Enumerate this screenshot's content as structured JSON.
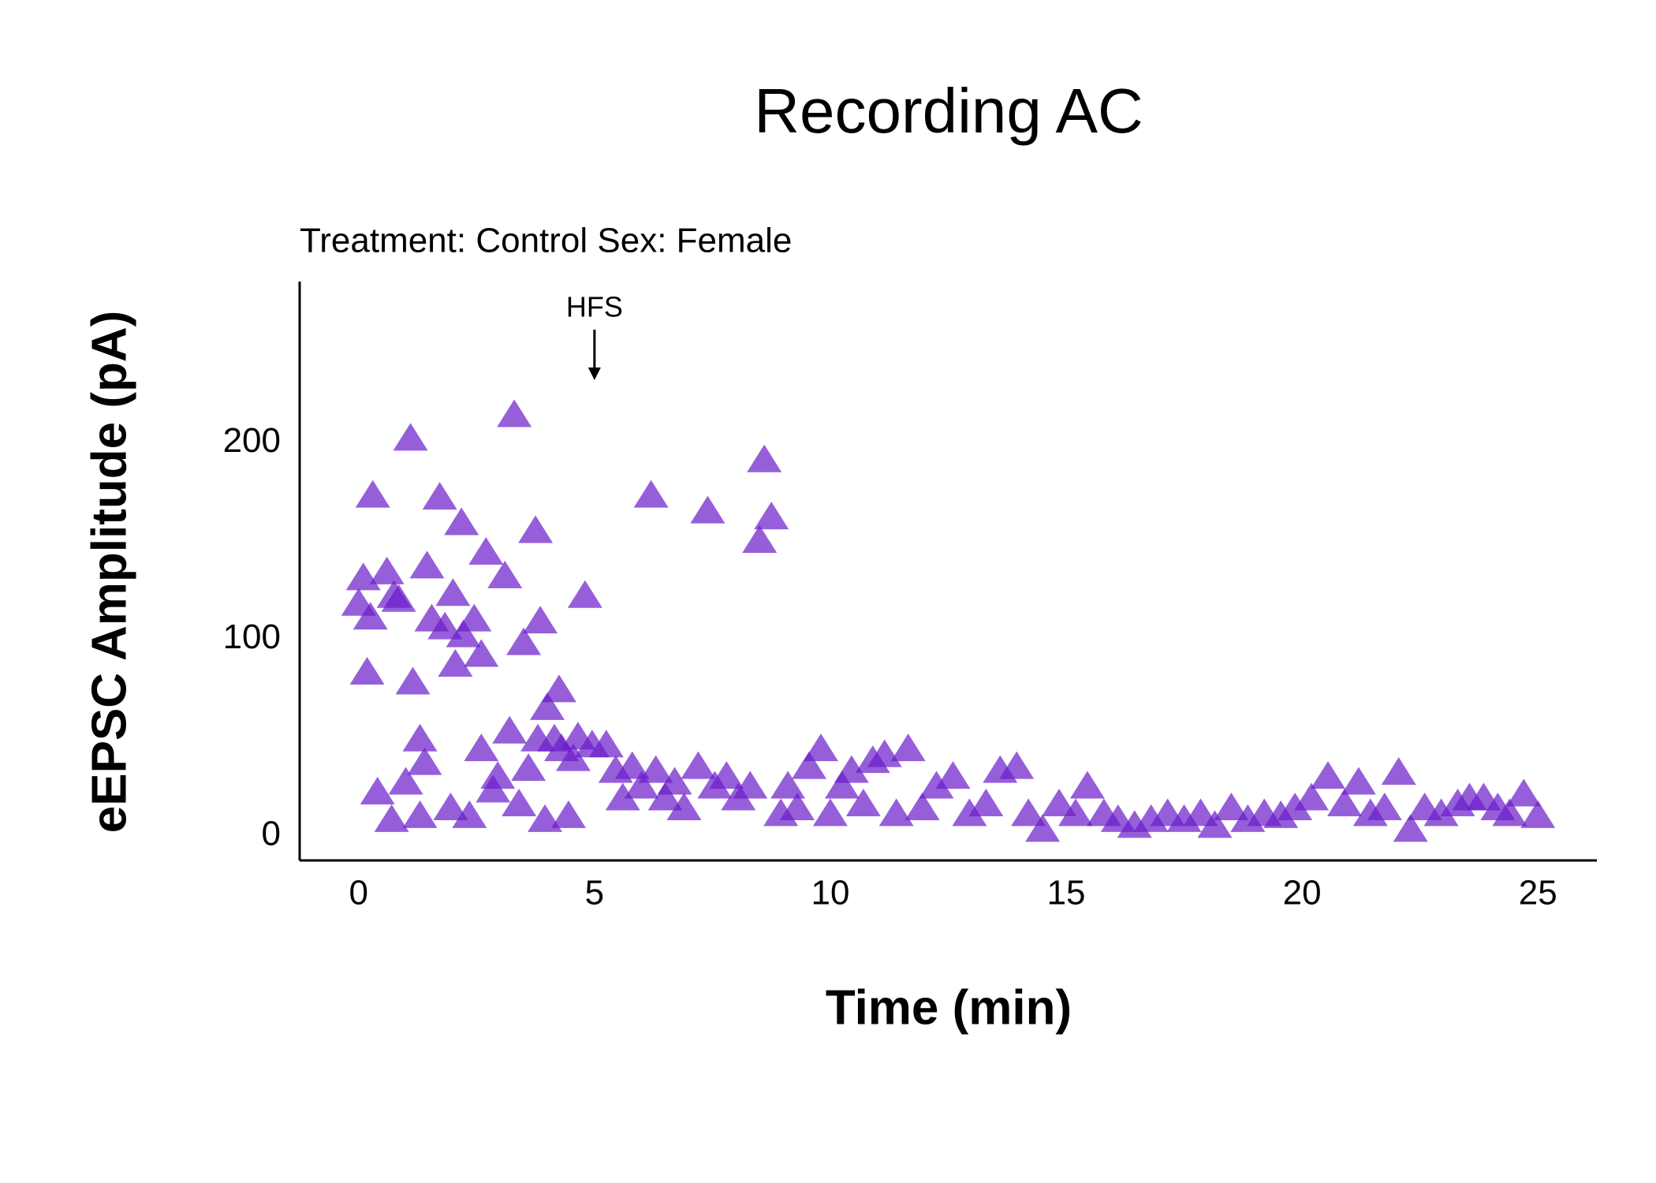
{
  "chart_data": {
    "type": "scatter",
    "title": "Recording AC",
    "subtitle": "Treatment: Control  Sex: Female",
    "x_label": "Time (min)",
    "y_label": "eEPSC Amplitude (pA)",
    "marker": "triangle",
    "color": "#6a1bc9",
    "alpha": 0.7,
    "annotation": {
      "text": "HFS",
      "x": 5
    },
    "x": [
      0.1,
      0,
      0.3,
      0.25,
      0.18,
      0.4,
      0.6,
      0.7,
      0.75,
      0.85,
      1.0,
      1.1,
      1.15,
      1.3,
      1.4,
      1.45,
      1.55,
      1.3,
      1.72,
      1.83,
      1.95,
      2.05,
      2.0,
      2.18,
      2.22,
      2.35,
      2.45,
      2.6,
      2.6,
      2.7,
      2.85,
      2.95,
      3.1,
      3.2,
      3.3,
      3.4,
      3.5,
      3.6,
      3.75,
      3.8,
      3.85,
      3.95,
      4.0,
      4.15,
      4.25,
      4.3,
      4.45,
      4.55,
      4.65,
      4.8,
      4.95,
      5.25,
      5.45,
      5.6,
      5.8,
      6.0,
      6.2,
      6.3,
      6.5,
      6.7,
      6.9,
      7.2,
      7.4,
      7.55,
      7.8,
      8.05,
      8.3,
      8.5,
      8.6,
      8.75,
      8.95,
      9.1,
      9.3,
      9.55,
      9.8,
      10.0,
      10.25,
      10.45,
      10.7,
      10.9,
      11.15,
      11.4,
      11.65,
      11.95,
      12.25,
      12.6,
      12.95,
      13.3,
      13.6,
      13.95,
      14.2,
      14.5,
      14.85,
      15.2,
      15.45,
      15.8,
      16.1,
      16.45,
      16.8,
      17.15,
      17.5,
      17.85,
      18.15,
      18.5,
      18.85,
      19.2,
      19.55,
      19.85,
      20.2,
      20.55,
      20.9,
      21.2,
      21.45,
      21.75,
      22.05,
      22.3,
      22.6,
      22.95,
      23.3,
      23.55,
      23.85,
      24.15,
      24.4,
      24.7,
      25
    ],
    "values": [
      131,
      118,
      173,
      111,
      83,
      22,
      134,
      8,
      122,
      120,
      27,
      202,
      78,
      49,
      37,
      137,
      110,
      10,
      172,
      106,
      14,
      87,
      123,
      159,
      102,
      10,
      110,
      44,
      92,
      144,
      23,
      30,
      132,
      53,
      214,
      16,
      98,
      34,
      155,
      49,
      109,
      8,
      65,
      49,
      74,
      44,
      10,
      39,
      50,
      122,
      46,
      46,
      33,
      19,
      35,
      25,
      173,
      33,
      19,
      27,
      14,
      35,
      165,
      25,
      30,
      19,
      25,
      150,
      191,
      162,
      11,
      25,
      14,
      35,
      44,
      11,
      25,
      33,
      16,
      38,
      41,
      11,
      44,
      14,
      25,
      30,
      11,
      16,
      33,
      35,
      11,
      3,
      16,
      11,
      25,
      11,
      8,
      5,
      8,
      11,
      8,
      11,
      5,
      14,
      8,
      11,
      10,
      14,
      19,
      30,
      16,
      27,
      11,
      14,
      32,
      3,
      14,
      11,
      16,
      19,
      19,
      14,
      11,
      21,
      10
    ],
    "xlim": [
      -1.25,
      26.25
    ],
    "ylim": [
      -12.5,
      282
    ],
    "xticks": [
      0,
      5,
      10,
      15,
      20,
      25
    ],
    "yticks": [
      0,
      100,
      200
    ]
  }
}
